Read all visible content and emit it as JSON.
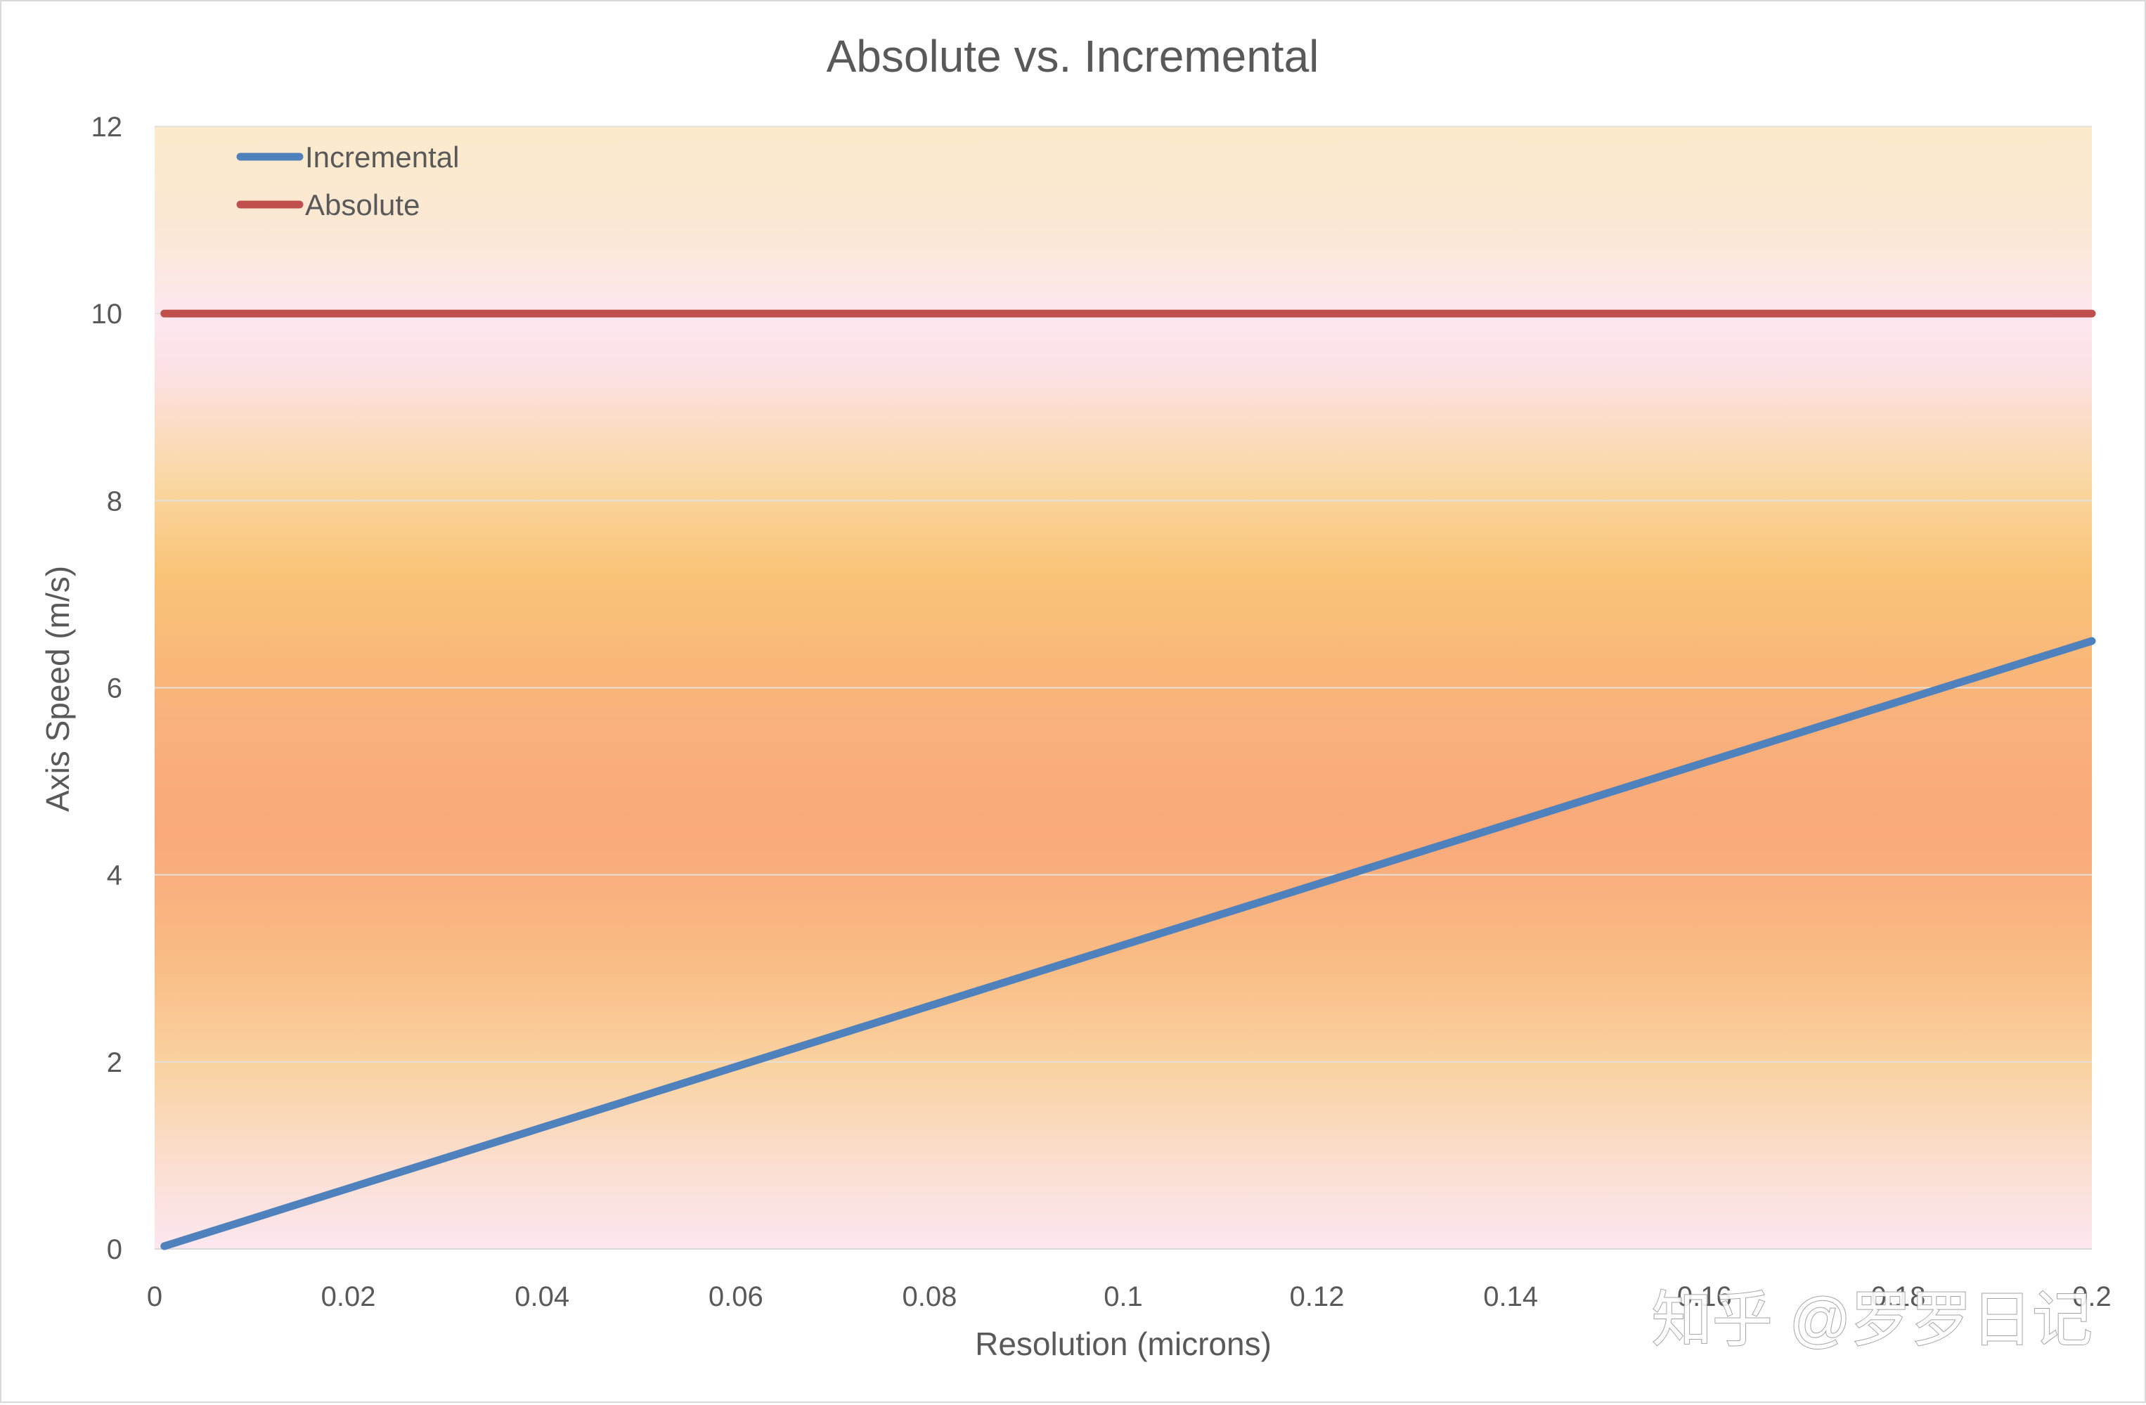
{
  "chart_data": {
    "type": "line",
    "title": "Absolute vs. Incremental",
    "xlabel": "Resolution (microns)",
    "ylabel": "Axis Speed (m/s)",
    "xlim": [
      0,
      0.2
    ],
    "ylim": [
      0,
      12
    ],
    "x_ticks": [
      "0",
      "0.02",
      "0.04",
      "0.06",
      "0.08",
      "0.1",
      "0.12",
      "0.14",
      "0.16",
      "0.18",
      "0.2"
    ],
    "y_ticks": [
      "0",
      "2",
      "4",
      "6",
      "8",
      "10",
      "12"
    ],
    "grid": "horizontal",
    "legend_position": "top-left",
    "series": [
      {
        "name": "Incremental",
        "color": "#4f81bd",
        "x": [
          0.001,
          0.2
        ],
        "y": [
          0.03,
          6.5
        ]
      },
      {
        "name": "Absolute",
        "color": "#c0504d",
        "x": [
          0.001,
          0.2
        ],
        "y": [
          10,
          10
        ]
      }
    ]
  },
  "watermark": "知乎 @罗罗日记"
}
